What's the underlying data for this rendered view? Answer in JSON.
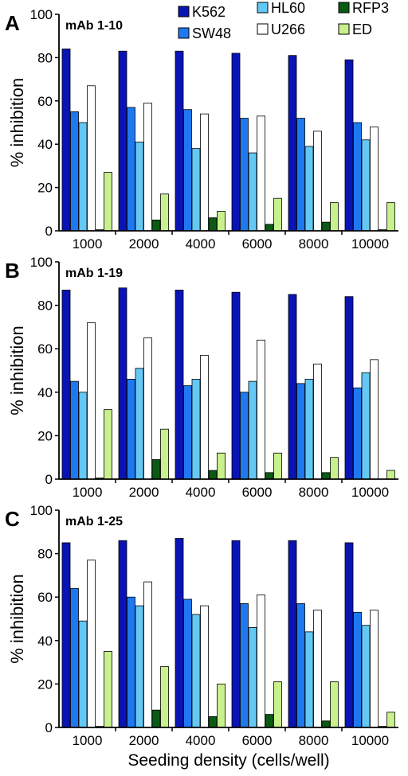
{
  "legend": [
    {
      "name": "K562",
      "color": "#0a14b4"
    },
    {
      "name": "SW48",
      "color": "#1e78f0"
    },
    {
      "name": "HL60",
      "color": "#64c8f5"
    },
    {
      "name": "U266",
      "color": "#ffffff"
    },
    {
      "name": "RFP3",
      "color": "#0a5a14"
    },
    {
      "name": "ED",
      "color": "#c8f08c"
    }
  ],
  "ylabel": "% inhibition",
  "xlabel": "Seeding density (cells/well)",
  "chart_data": [
    {
      "type": "bar",
      "panel": "A",
      "title": "mAb 1-10",
      "categories": [
        "1000",
        "2000",
        "4000",
        "6000",
        "8000",
        "10000"
      ],
      "ylim": [
        0,
        100
      ],
      "yticks": [
        0,
        20,
        40,
        60,
        80,
        100
      ],
      "series": [
        {
          "name": "K562",
          "values": [
            84,
            83,
            83,
            82,
            81,
            79
          ]
        },
        {
          "name": "SW48",
          "values": [
            55,
            57,
            56,
            52,
            52,
            50
          ]
        },
        {
          "name": "HL60",
          "values": [
            50,
            41,
            38,
            36,
            39,
            42
          ]
        },
        {
          "name": "U266",
          "values": [
            67,
            59,
            54,
            53,
            46,
            48
          ]
        },
        {
          "name": "RFP3",
          "values": [
            0.5,
            5,
            6,
            3,
            4,
            0.5
          ]
        },
        {
          "name": "ED",
          "values": [
            27,
            17,
            9,
            15,
            13,
            13
          ]
        }
      ]
    },
    {
      "type": "bar",
      "panel": "B",
      "title": "mAb 1-19",
      "categories": [
        "1000",
        "2000",
        "4000",
        "6000",
        "8000",
        "10000"
      ],
      "ylim": [
        0,
        100
      ],
      "yticks": [
        0,
        20,
        40,
        60,
        80,
        100
      ],
      "series": [
        {
          "name": "K562",
          "values": [
            87,
            88,
            87,
            86,
            85,
            84
          ]
        },
        {
          "name": "SW48",
          "values": [
            45,
            46,
            43,
            40,
            44,
            42
          ]
        },
        {
          "name": "HL60",
          "values": [
            40,
            51,
            46,
            45,
            46,
            49
          ]
        },
        {
          "name": "U266",
          "values": [
            72,
            65,
            57,
            64,
            53,
            55
          ]
        },
        {
          "name": "RFP3",
          "values": [
            0.5,
            9,
            4,
            3,
            3,
            0
          ]
        },
        {
          "name": "ED",
          "values": [
            32,
            23,
            12,
            12,
            10,
            4
          ]
        }
      ]
    },
    {
      "type": "bar",
      "panel": "C",
      "title": "mAb 1-25",
      "categories": [
        "1000",
        "2000",
        "4000",
        "6000",
        "8000",
        "10000"
      ],
      "ylim": [
        0,
        100
      ],
      "yticks": [
        0,
        20,
        40,
        60,
        80,
        100
      ],
      "series": [
        {
          "name": "K562",
          "values": [
            85,
            86,
            87,
            86,
            86,
            85
          ]
        },
        {
          "name": "SW48",
          "values": [
            64,
            60,
            59,
            57,
            57,
            53
          ]
        },
        {
          "name": "HL60",
          "values": [
            49,
            56,
            52,
            46,
            44,
            47
          ]
        },
        {
          "name": "U266",
          "values": [
            77,
            67,
            56,
            61,
            54,
            54
          ]
        },
        {
          "name": "RFP3",
          "values": [
            0.5,
            8,
            5,
            6,
            3,
            0.5
          ]
        },
        {
          "name": "ED",
          "values": [
            35,
            28,
            20,
            21,
            21,
            7
          ]
        }
      ]
    }
  ]
}
